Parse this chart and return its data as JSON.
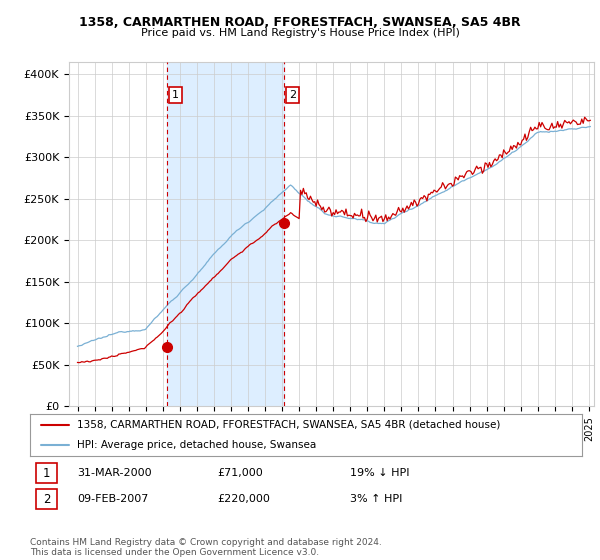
{
  "title1": "1358, CARMARTHEN ROAD, FFORESTFACH, SWANSEA, SA5 4BR",
  "title2": "Price paid vs. HM Land Registry's House Price Index (HPI)",
  "ylabel_values": [
    "£0",
    "£50K",
    "£100K",
    "£150K",
    "£200K",
    "£250K",
    "£300K",
    "£350K",
    "£400K"
  ],
  "yticks": [
    0,
    50000,
    100000,
    150000,
    200000,
    250000,
    300000,
    350000,
    400000
  ],
  "ylim": [
    0,
    415000
  ],
  "xlim_start": 1994.5,
  "xlim_end": 2025.3,
  "sale1_x": 2000.25,
  "sale1_y": 71000,
  "sale2_x": 2007.1,
  "sale2_y": 220000,
  "vline1_x": 2000.25,
  "vline2_x": 2007.1,
  "legend_line1": "1358, CARMARTHEN ROAD, FFORESTFACH, SWANSEA, SA5 4BR (detached house)",
  "legend_line2": "HPI: Average price, detached house, Swansea",
  "annot1_date": "31-MAR-2000",
  "annot1_price": "£71,000",
  "annot1_hpi": "19% ↓ HPI",
  "annot2_date": "09-FEB-2007",
  "annot2_price": "£220,000",
  "annot2_hpi": "3% ↑ HPI",
  "footer": "Contains HM Land Registry data © Crown copyright and database right 2024.\nThis data is licensed under the Open Government Licence v3.0.",
  "color_red": "#cc0000",
  "color_blue": "#7ab0d4",
  "color_vline": "#cc0000",
  "shade_color": "#ddeeff",
  "bg_color": "#ffffff",
  "grid_color": "#cccccc"
}
